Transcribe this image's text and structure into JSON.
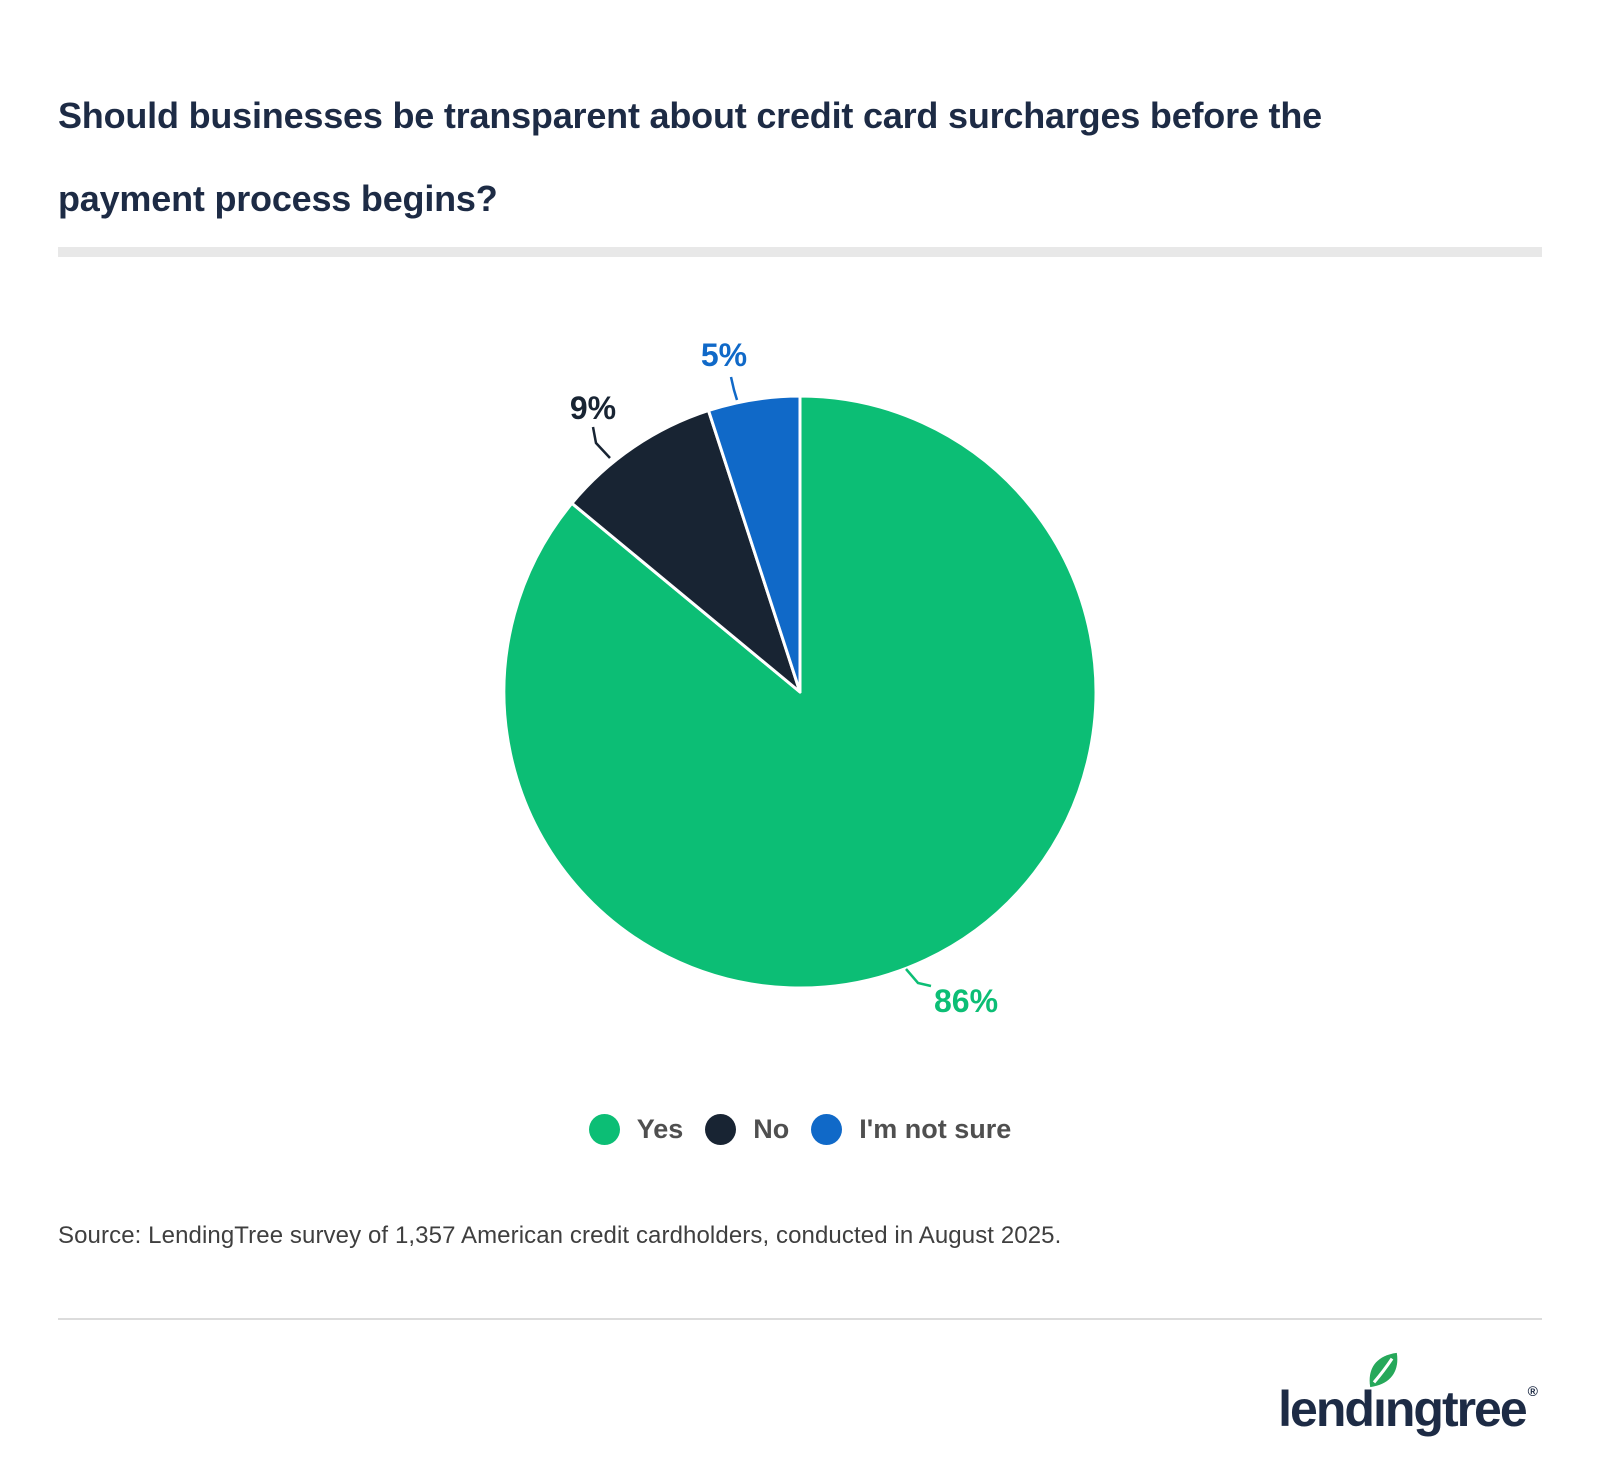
{
  "page": {
    "title_lines": [
      "Should businesses be transparent about credit card surcharges before the",
      "payment process begins?"
    ],
    "title_color": "#1d2b45",
    "title_divider_color": "#e8e8e8",
    "source_text": "Source: LendingTree survey of 1,357 American credit cardholders, conducted in August 2025.",
    "source_color": "#3f3f3f",
    "footer_divider_color": "#dcdcdc",
    "background": "#ffffff"
  },
  "chart_data": {
    "type": "pie",
    "title": "Should businesses be transparent about credit card surcharges before the payment process begins?",
    "series": [
      {
        "name": "Yes",
        "value": 86,
        "label": "86%",
        "color": "#0cbe75"
      },
      {
        "name": "No",
        "value": 9,
        "label": "9%",
        "color": "#182433"
      },
      {
        "name": "I'm not sure",
        "value": 5,
        "label": "5%",
        "color": "#1069c8"
      }
    ],
    "start": "top",
    "direction": "clockwise",
    "legend_position": "bottom",
    "slice_separator_color": "#ffffff"
  },
  "legend": {
    "text_color": "#4f4f4f"
  },
  "logo": {
    "name": "lendingtree",
    "part_before_i": "lend",
    "dotless_i": "ı",
    "part_after_i": "ngtree",
    "mark": "®",
    "wordmark_color": "#1d2b45",
    "leaf_color": "#26a85a",
    "leaf_vein_color": "#ffffff"
  }
}
